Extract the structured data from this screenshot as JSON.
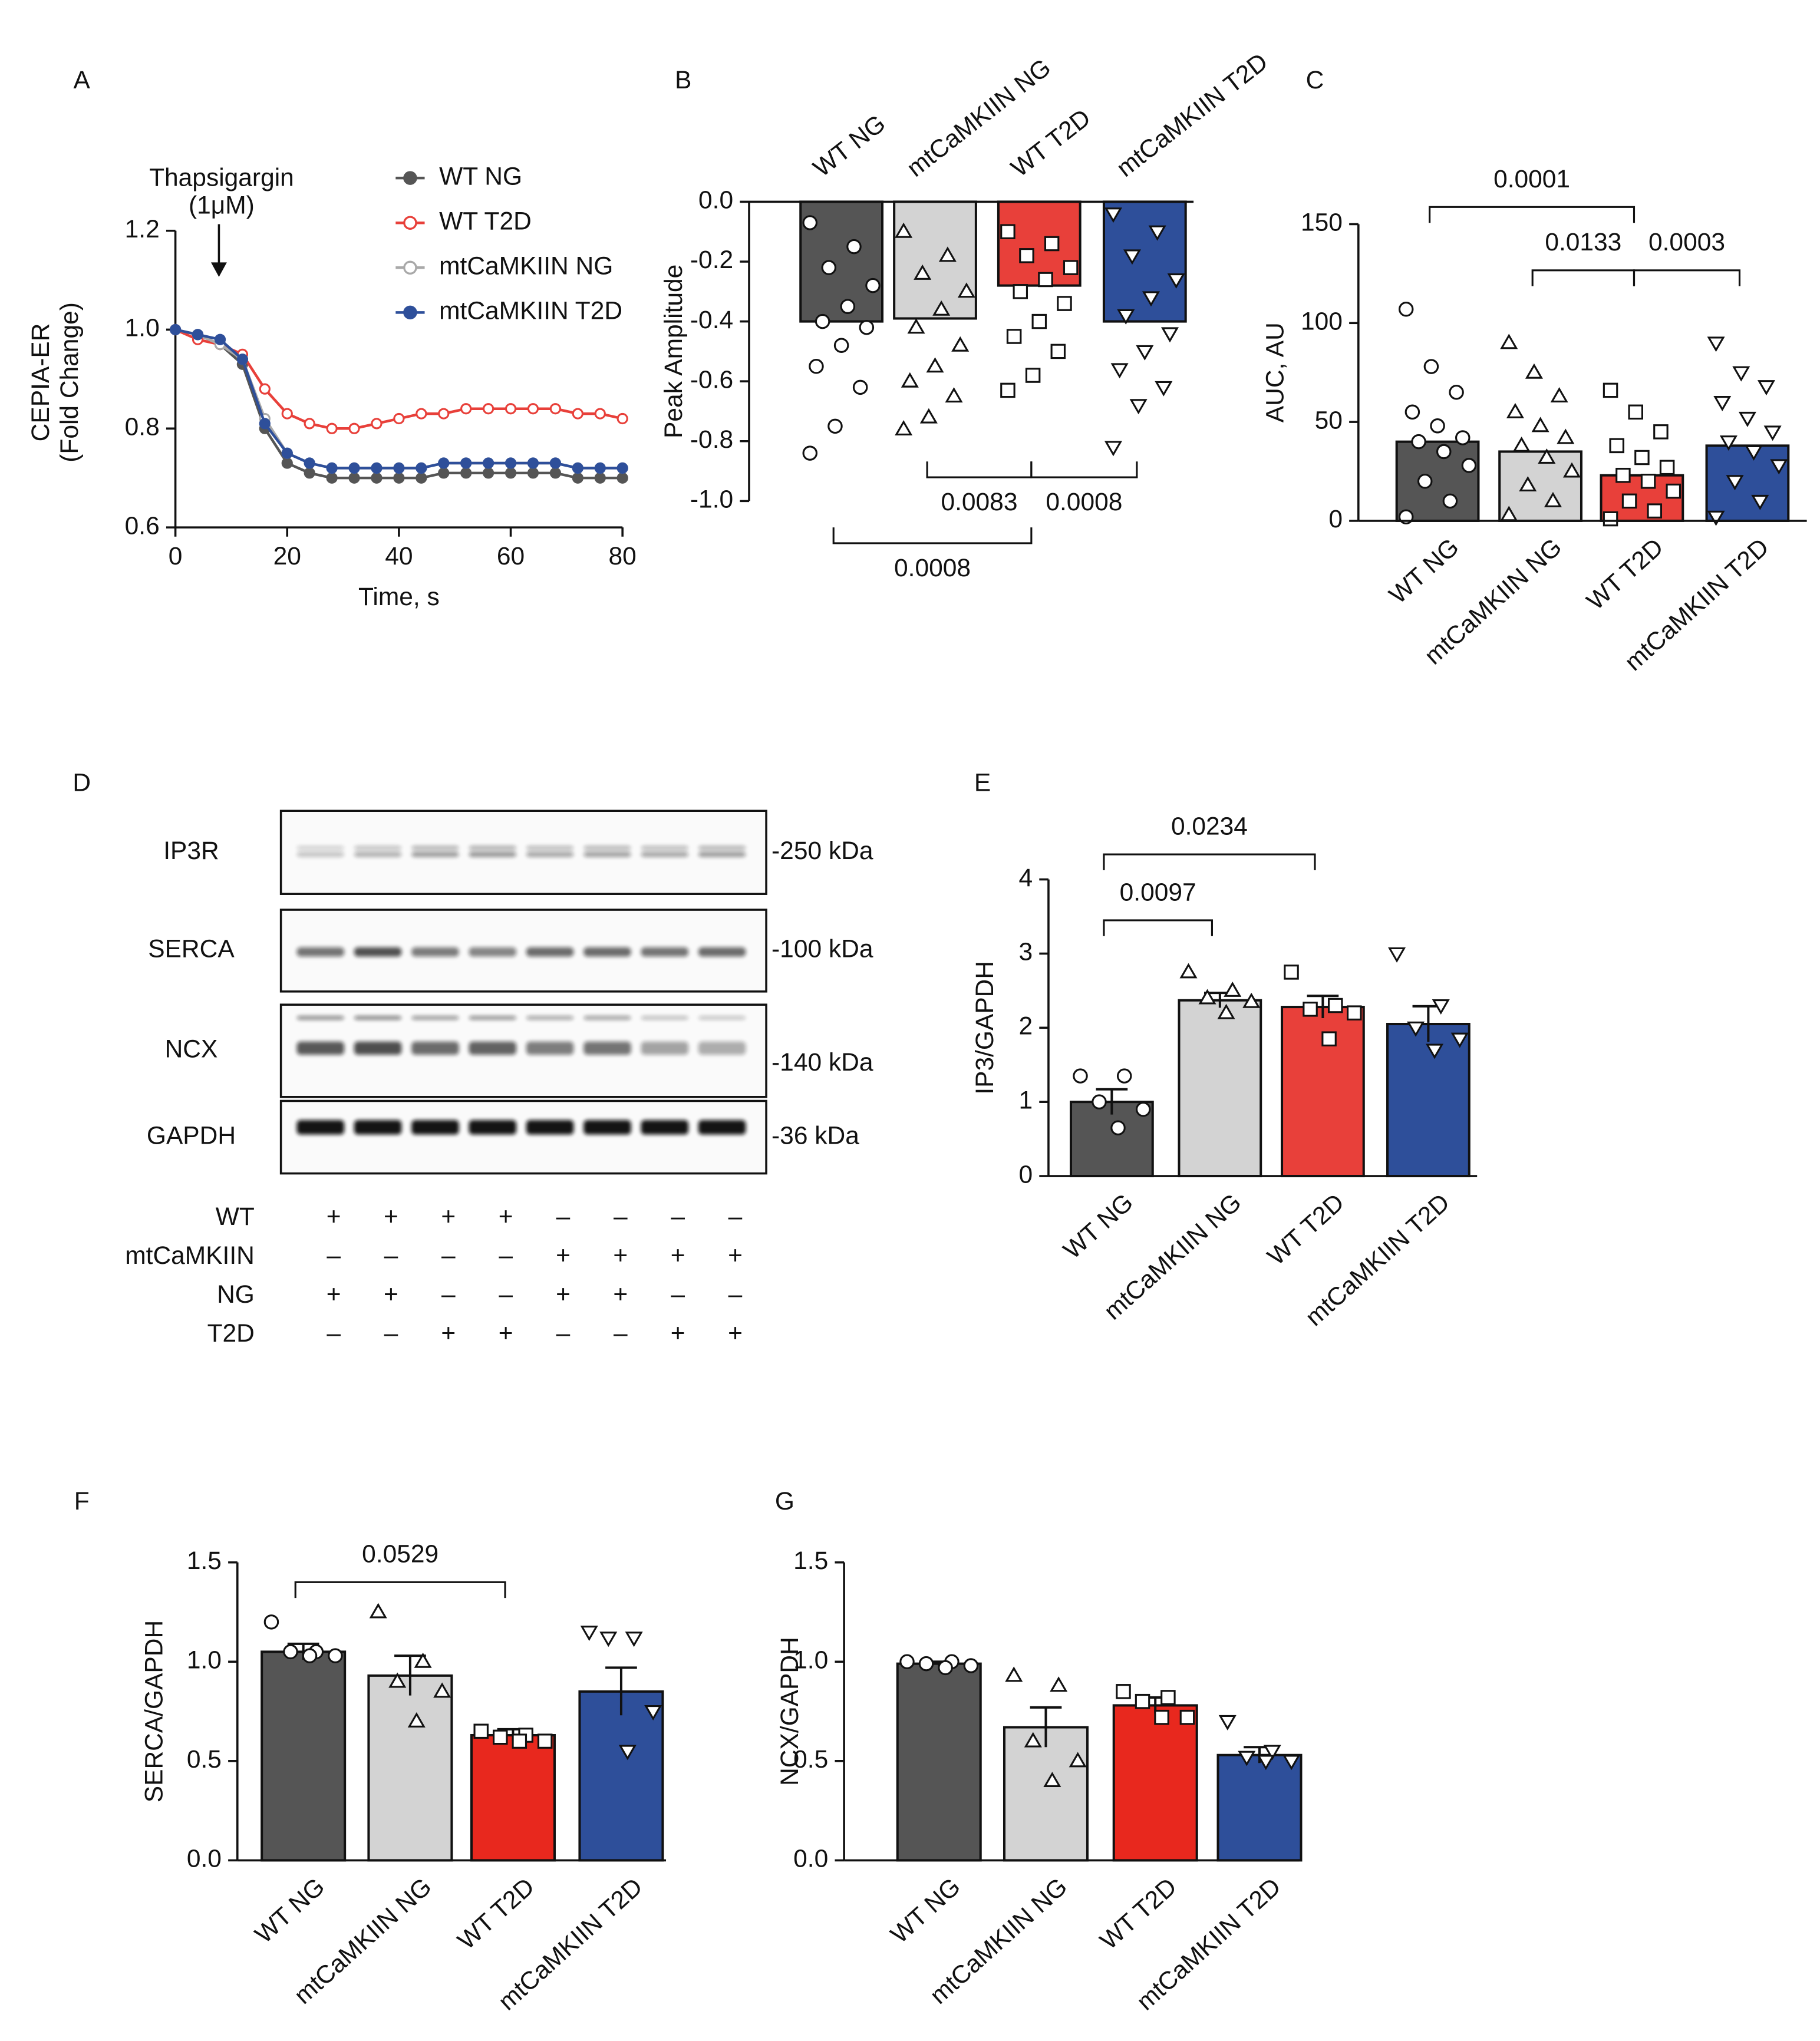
{
  "chart_data": [
    {
      "panel": "A",
      "type": "line",
      "ylabel": [
        "CEPIA-ER",
        "(Fold Change)"
      ],
      "xlabel": "Time, s",
      "annotation": [
        "Thapsigargin",
        "(1μM)"
      ],
      "xlim": [
        0,
        80
      ],
      "xticks": [
        0,
        20,
        40,
        60,
        80
      ],
      "ylim": [
        0.6,
        1.2
      ],
      "yticks": [
        0.6,
        0.8,
        {
          "value": 1,
          "label": "1.0"
        },
        1.2
      ],
      "x": [
        0,
        4,
        8,
        12,
        16,
        20,
        24,
        28,
        32,
        36,
        40,
        44,
        48,
        52,
        56,
        60,
        64,
        68,
        72,
        76,
        80
      ],
      "series": [
        {
          "name": "WT NG",
          "color": "#555555",
          "values": [
            1.0,
            0.99,
            0.97,
            0.93,
            0.8,
            0.73,
            0.71,
            0.7,
            0.7,
            0.7,
            0.7,
            0.7,
            0.71,
            0.71,
            0.71,
            0.71,
            0.71,
            0.71,
            0.7,
            0.7,
            0.7
          ]
        },
        {
          "name": "WT T2D",
          "color": "#e8403a",
          "values": [
            1.0,
            0.98,
            0.97,
            0.95,
            0.88,
            0.83,
            0.81,
            0.8,
            0.8,
            0.81,
            0.82,
            0.83,
            0.83,
            0.84,
            0.84,
            0.84,
            0.84,
            0.84,
            0.83,
            0.83,
            0.82
          ]
        },
        {
          "name": "mtCaMKIIN NG",
          "color": "#a9a9a9",
          "values": [
            1.0,
            0.99,
            0.97,
            0.94,
            0.82,
            0.75,
            0.73,
            0.72,
            0.72,
            0.72,
            0.72,
            0.72,
            0.73,
            0.73,
            0.73,
            0.73,
            0.73,
            0.73,
            0.72,
            0.72,
            0.72
          ]
        },
        {
          "name": "mtCaMKIIN T2D",
          "color": "#2e4f9a",
          "values": [
            1.0,
            0.99,
            0.98,
            0.94,
            0.81,
            0.75,
            0.73,
            0.72,
            0.72,
            0.72,
            0.72,
            0.72,
            0.73,
            0.73,
            0.73,
            0.73,
            0.73,
            0.73,
            0.72,
            0.72,
            0.72
          ]
        }
      ],
      "legend": "upper right"
    },
    {
      "panel": "B",
      "type": "bar",
      "ylabel": "Peak Amplitude",
      "categories": [
        "WT NG",
        "mtCaMKIIN NG",
        "WT T2D",
        "mtCaMKIIN T2D"
      ],
      "colors": [
        "#555555",
        "#d3d3d3",
        "#e8403a",
        "#2e4f9a"
      ],
      "values": [
        -0.4,
        -0.39,
        -0.28,
        -0.4
      ],
      "points": [
        [
          -0.07,
          -0.15,
          -0.22,
          -0.28,
          -0.35,
          -0.4,
          -0.42,
          -0.48,
          -0.55,
          -0.62,
          -0.75,
          -0.84
        ],
        [
          -0.1,
          -0.18,
          -0.24,
          -0.3,
          -0.36,
          -0.42,
          -0.48,
          -0.55,
          -0.6,
          -0.65,
          -0.72,
          -0.76
        ],
        [
          -0.1,
          -0.14,
          -0.18,
          -0.22,
          -0.26,
          -0.3,
          -0.34,
          -0.4,
          -0.45,
          -0.5,
          -0.58,
          -0.63
        ],
        [
          -0.04,
          -0.1,
          -0.18,
          -0.26,
          -0.32,
          -0.38,
          -0.44,
          -0.5,
          -0.56,
          -0.62,
          -0.68,
          -0.82
        ]
      ],
      "ylim": [
        -1,
        0
      ],
      "yticks": [
        {
          "value": 0,
          "label": "0.0"
        },
        -0.2,
        -0.4,
        -0.6,
        -0.8,
        {
          "value": -1,
          "label": "-1.0"
        }
      ],
      "annotations": [
        "0.0083",
        "0.0008",
        "0.0008"
      ]
    },
    {
      "panel": "C",
      "type": "bar",
      "ylabel": "AUC, AU",
      "categories": [
        "WT NG",
        "mtCaMKIIN NG",
        "WT T2D",
        "mtCaMKIIN T2D"
      ],
      "colors": [
        "#555555",
        "#d3d3d3",
        "#e8403a",
        "#2e4f9a"
      ],
      "values": [
        40,
        35,
        23,
        38
      ],
      "points": [
        [
          2,
          10,
          20,
          28,
          35,
          40,
          42,
          48,
          55,
          65,
          78,
          107
        ],
        [
          3,
          10,
          18,
          25,
          32,
          38,
          42,
          48,
          55,
          63,
          75,
          90
        ],
        [
          1,
          5,
          10,
          15,
          20,
          23,
          27,
          32,
          38,
          45,
          55,
          66
        ],
        [
          2,
          10,
          20,
          28,
          35,
          40,
          45,
          52,
          60,
          68,
          75,
          90
        ]
      ],
      "ylim": [
        0,
        150
      ],
      "yticks": [
        0,
        50,
        100,
        150
      ],
      "annotations": [
        "0.0001",
        "0.0133",
        "0.0003"
      ]
    },
    {
      "panel": "E",
      "type": "bar",
      "ylabel": "IP3/GAPDH",
      "categories": [
        "WT NG",
        "mtCaMKIIN NG",
        "WT T2D",
        "mtCaMKIIN T2D"
      ],
      "colors": [
        "#555555",
        "#d3d3d3",
        "#e8403a",
        "#2e4f9a"
      ],
      "values": [
        1.0,
        2.37,
        2.28,
        2.05
      ],
      "errors": [
        0.17,
        0.1,
        0.15,
        0.24
      ],
      "points": [
        [
          1.35,
          1.35,
          1.0,
          0.9,
          0.65
        ],
        [
          2.75,
          2.5,
          2.4,
          2.35,
          2.2
        ],
        [
          2.75,
          2.3,
          2.25,
          2.2,
          1.85
        ],
        [
          3.0,
          2.3,
          2.0,
          1.85,
          1.7
        ]
      ],
      "ylim": [
        0,
        4
      ],
      "yticks": [
        0,
        1,
        2,
        3,
        4
      ],
      "annotations": [
        "0.0097",
        "0.0234"
      ]
    },
    {
      "panel": "F",
      "type": "bar",
      "ylabel": "SERCA/GAPDH",
      "categories": [
        "WT NG",
        "mtCaMKIIN NG",
        "WT T2D",
        "mtCaMKIIN T2D"
      ],
      "colors": [
        "#555555",
        "#d3d3d3",
        "#e8281e",
        "#2e4f9a"
      ],
      "values": [
        1.05,
        0.93,
        0.63,
        0.85
      ],
      "errors": [
        0.04,
        0.1,
        0.03,
        0.12
      ],
      "points": [
        [
          1.2,
          1.05,
          1.05,
          1.03,
          1.03
        ],
        [
          1.25,
          1.0,
          0.9,
          0.85,
          0.7
        ],
        [
          0.65,
          0.63,
          0.62,
          0.6,
          0.6
        ],
        [
          1.15,
          1.12,
          1.12,
          0.75,
          0.55
        ]
      ],
      "ylim": [
        0,
        1.5
      ],
      "yticks": [
        {
          "value": 0,
          "label": "0.0"
        },
        0.5,
        {
          "value": 1,
          "label": "1.0"
        },
        1.5
      ],
      "annotations": [
        "0.0529"
      ]
    },
    {
      "panel": "G",
      "type": "bar",
      "ylabel": "NCX/GAPDH",
      "categories": [
        "WT NG",
        "mtCaMKIIN NG",
        "WT T2D",
        "mtCaMKIIN T2D"
      ],
      "colors": [
        "#555555",
        "#d3d3d3",
        "#e8281e",
        "#2e4f9a"
      ],
      "values": [
        0.99,
        0.67,
        0.78,
        0.53
      ],
      "errors": [
        0.01,
        0.1,
        0.04,
        0.04
      ],
      "points": [
        [
          1.0,
          1.0,
          0.99,
          0.98,
          0.97
        ],
        [
          0.93,
          0.88,
          0.6,
          0.5,
          0.4
        ],
        [
          0.85,
          0.82,
          0.8,
          0.72,
          0.72
        ],
        [
          0.7,
          0.55,
          0.52,
          0.5,
          0.5
        ]
      ],
      "ylim": [
        0,
        1.5
      ],
      "yticks": [
        {
          "value": 0,
          "label": "0.0"
        },
        0.5,
        {
          "value": 1,
          "label": "1.0"
        },
        1.5
      ],
      "annotations": []
    }
  ],
  "blot": {
    "panel": "D",
    "proteins": [
      "IP3R",
      "SERCA",
      "NCX",
      "GAPDH"
    ],
    "sizes": [
      "-250 kDa",
      "-100 kDa",
      "-140 kDa",
      "-36 kDa"
    ],
    "conditions": [
      {
        "label": "WT",
        "marks": [
          "+",
          "+",
          "+",
          "+",
          "–",
          "–",
          "–",
          "–"
        ]
      },
      {
        "label": "mtCaMKIIN",
        "marks": [
          "–",
          "–",
          "–",
          "–",
          "+",
          "+",
          "+",
          "+"
        ]
      },
      {
        "label": "NG",
        "marks": [
          "+",
          "+",
          "–",
          "–",
          "+",
          "+",
          "–",
          "–"
        ]
      },
      {
        "label": "T2D",
        "marks": [
          "–",
          "–",
          "+",
          "+",
          "–",
          "–",
          "+",
          "+"
        ]
      }
    ]
  }
}
